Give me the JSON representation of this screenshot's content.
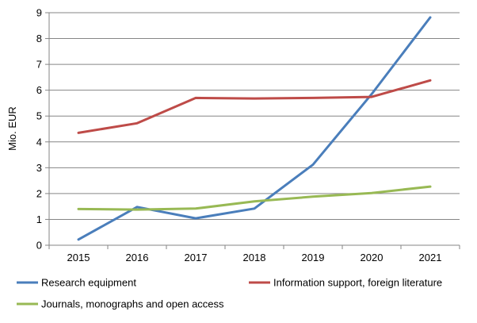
{
  "chart_data": {
    "type": "line",
    "title": "",
    "xlabel": "",
    "ylabel": "Mio. EUR",
    "x": [
      "2015",
      "2016",
      "2017",
      "2018",
      "2019",
      "2020",
      "2021"
    ],
    "ylim": [
      0,
      9
    ],
    "yticks": [
      0,
      1,
      2,
      3,
      4,
      5,
      6,
      7,
      8,
      9
    ],
    "grid": true,
    "legend_position": "bottom",
    "series": [
      {
        "name": "Research equipment",
        "color": "#4a7ebb",
        "values": [
          0.22,
          1.48,
          1.04,
          1.42,
          3.12,
          5.85,
          8.82
        ]
      },
      {
        "name": "Information support, foreign literature",
        "color": "#be4b48",
        "values": [
          4.35,
          4.72,
          5.7,
          5.68,
          5.7,
          5.74,
          6.38
        ]
      },
      {
        "name": "Journals, monographs and open access",
        "color": "#98b954",
        "values": [
          1.4,
          1.38,
          1.42,
          1.7,
          1.88,
          2.02,
          2.27
        ]
      }
    ]
  }
}
